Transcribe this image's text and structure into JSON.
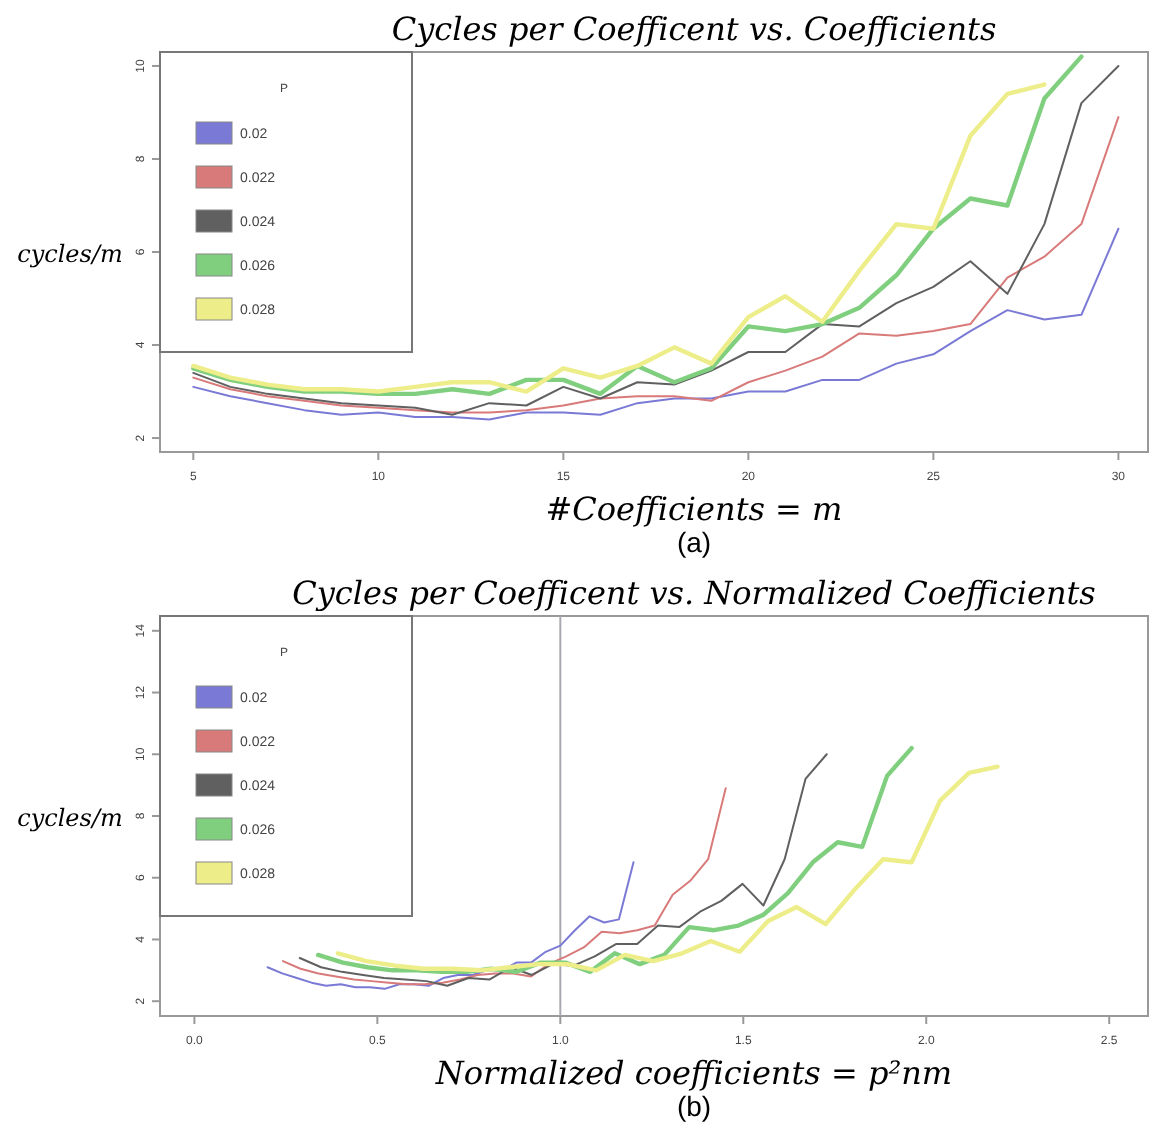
{
  "chart_data": [
    {
      "type": "line",
      "title": "Cycles per Coefficent vs. Coefficients",
      "xlabel": "#Coefficients = m",
      "ylabel": "cycles/m",
      "legend_title": "P",
      "legend": "top left",
      "annotations": [
        "(a)"
      ],
      "xlim": [
        4.1,
        30.8
      ],
      "ylim": [
        1.7,
        10.3
      ],
      "xticks": [
        5,
        10,
        15,
        20,
        25,
        30
      ],
      "yticks": [
        2,
        4,
        6,
        8,
        10
      ],
      "x": [
        5,
        6,
        7,
        8,
        9,
        10,
        11,
        12,
        13,
        14,
        15,
        16,
        17,
        18,
        19,
        20,
        21,
        22,
        23,
        24,
        25,
        26,
        27,
        28,
        29,
        30
      ],
      "series": [
        {
          "name": "0.02",
          "color": "#7a7ad6",
          "values": [
            3.1,
            2.9,
            2.75,
            2.6,
            2.5,
            2.55,
            2.45,
            2.45,
            2.4,
            2.55,
            2.55,
            2.5,
            2.75,
            2.85,
            2.85,
            3.0,
            3.0,
            3.25,
            3.25,
            3.6,
            3.8,
            4.3,
            4.75,
            4.55,
            4.65,
            6.5
          ]
        },
        {
          "name": "0.022",
          "color": "#d97a7a",
          "values": [
            3.3,
            3.05,
            2.9,
            2.8,
            2.7,
            2.65,
            2.6,
            2.55,
            2.55,
            2.6,
            2.7,
            2.85,
            2.9,
            2.9,
            2.8,
            3.2,
            3.45,
            3.75,
            4.25,
            4.2,
            4.3,
            4.45,
            5.45,
            5.9,
            6.6,
            8.9
          ]
        },
        {
          "name": "0.024",
          "color": "#606060",
          "values": [
            3.4,
            3.1,
            2.95,
            2.85,
            2.75,
            2.7,
            2.65,
            2.5,
            2.75,
            2.7,
            3.1,
            2.85,
            3.2,
            3.15,
            3.45,
            3.85,
            3.85,
            4.45,
            4.4,
            4.9,
            5.25,
            5.8,
            5.1,
            6.6,
            9.2,
            10.0
          ]
        },
        {
          "name": "0.026",
          "color": "#7fcf7f",
          "values": [
            3.5,
            3.25,
            3.1,
            3.0,
            3.0,
            2.95,
            2.95,
            3.05,
            2.95,
            3.25,
            3.25,
            2.95,
            3.55,
            3.2,
            3.5,
            4.4,
            4.3,
            4.45,
            4.8,
            5.5,
            6.5,
            7.15,
            7.0,
            9.3,
            10.2,
            null
          ]
        },
        {
          "name": "0.028",
          "color": "#eded8a",
          "values": [
            3.55,
            3.3,
            3.15,
            3.05,
            3.05,
            3.0,
            3.1,
            3.2,
            3.2,
            3.0,
            3.5,
            3.3,
            3.55,
            3.95,
            3.6,
            4.6,
            5.05,
            4.5,
            5.6,
            6.6,
            6.5,
            8.5,
            9.4,
            9.6,
            null,
            null
          ]
        }
      ]
    },
    {
      "type": "line",
      "title": "Cycles per Coefficent vs. Normalized Coefficients",
      "xlabel": "Normalized coefficients = p²nm",
      "ylabel": "cycles/m",
      "legend_title": "P",
      "legend": "top left",
      "annotations": [
        "(b)"
      ],
      "xlim": [
        -0.094,
        2.606
      ],
      "ylim": [
        1.52,
        14.48
      ],
      "xticks": [
        {
          "value": 0,
          "label": "0.0"
        },
        0.5,
        {
          "value": 1,
          "label": "1.0"
        },
        1.5,
        {
          "value": 2,
          "label": "2.0"
        },
        2.5
      ],
      "yticks": [
        2,
        4,
        6,
        8,
        10,
        12,
        14
      ],
      "ref_lines": [
        {
          "axis": "x",
          "value": 1,
          "label": null,
          "color": "#a8a8b0"
        }
      ],
      "series": [
        {
          "name": "0.02",
          "color": "#7a7ad6",
          "x": [
            0.2,
            0.24,
            0.28,
            0.32,
            0.36,
            0.4,
            0.44,
            0.48,
            0.52,
            0.56,
            0.6,
            0.64,
            0.68,
            0.72,
            0.76,
            0.8,
            0.84,
            0.88,
            0.92,
            0.96,
            1.0,
            1.04,
            1.08,
            1.12,
            1.16,
            1.2
          ],
          "values": [
            3.1,
            2.9,
            2.75,
            2.6,
            2.5,
            2.55,
            2.45,
            2.45,
            2.4,
            2.55,
            2.55,
            2.5,
            2.75,
            2.85,
            2.85,
            3.0,
            3.0,
            3.25,
            3.25,
            3.6,
            3.8,
            4.3,
            4.75,
            4.55,
            4.65,
            6.5
          ]
        },
        {
          "name": "0.022",
          "color": "#d97a7a",
          "x": [
            0.242,
            0.29,
            0.339,
            0.387,
            0.436,
            0.484,
            0.532,
            0.581,
            0.629,
            0.678,
            0.726,
            0.774,
            0.823,
            0.871,
            0.92,
            0.968,
            1.016,
            1.065,
            1.113,
            1.162,
            1.21,
            1.258,
            1.307,
            1.355,
            1.404,
            1.452
          ],
          "values": [
            3.3,
            3.05,
            2.9,
            2.8,
            2.7,
            2.65,
            2.6,
            2.55,
            2.55,
            2.6,
            2.7,
            2.85,
            2.9,
            2.9,
            2.8,
            3.2,
            3.45,
            3.75,
            4.25,
            4.2,
            4.3,
            4.45,
            5.45,
            5.9,
            6.6,
            8.9
          ]
        },
        {
          "name": "0.024",
          "color": "#606060",
          "x": [
            0.288,
            0.346,
            0.403,
            0.461,
            0.518,
            0.576,
            0.634,
            0.691,
            0.749,
            0.806,
            0.864,
            0.922,
            0.979,
            1.037,
            1.094,
            1.152,
            1.21,
            1.267,
            1.325,
            1.382,
            1.44,
            1.498,
            1.555,
            1.613,
            1.67,
            1.728
          ],
          "values": [
            3.4,
            3.1,
            2.95,
            2.85,
            2.75,
            2.7,
            2.65,
            2.5,
            2.75,
            2.7,
            3.1,
            2.85,
            3.2,
            3.15,
            3.45,
            3.85,
            3.85,
            4.45,
            4.4,
            4.9,
            5.25,
            5.8,
            5.1,
            6.6,
            9.2,
            10.0
          ]
        },
        {
          "name": "0.026",
          "color": "#7fcf7f",
          "x": [
            0.338,
            0.406,
            0.473,
            0.541,
            0.608,
            0.676,
            0.744,
            0.811,
            0.879,
            0.946,
            1.014,
            1.082,
            1.149,
            1.217,
            1.284,
            1.352,
            1.42,
            1.487,
            1.555,
            1.622,
            1.69,
            1.758,
            1.825,
            1.893,
            1.96
          ],
          "values": [
            3.5,
            3.25,
            3.1,
            3.0,
            3.0,
            2.95,
            2.95,
            3.05,
            2.95,
            3.25,
            3.25,
            2.95,
            3.55,
            3.2,
            3.5,
            4.4,
            4.3,
            4.45,
            4.8,
            5.5,
            6.5,
            7.15,
            7.0,
            9.3,
            10.2
          ]
        },
        {
          "name": "0.028",
          "color": "#eded8a",
          "x": [
            0.392,
            0.47,
            0.549,
            0.627,
            0.706,
            0.784,
            0.862,
            0.941,
            1.019,
            1.098,
            1.176,
            1.254,
            1.333,
            1.411,
            1.49,
            1.568,
            1.646,
            1.725,
            1.803,
            1.882,
            1.96,
            2.038,
            2.117,
            2.195
          ],
          "values": [
            3.55,
            3.3,
            3.15,
            3.05,
            3.05,
            3.0,
            3.1,
            3.2,
            3.2,
            3.0,
            3.5,
            3.3,
            3.55,
            3.95,
            3.6,
            4.6,
            5.05,
            4.5,
            5.6,
            6.6,
            6.5,
            8.5,
            9.4,
            9.6
          ]
        }
      ]
    }
  ]
}
